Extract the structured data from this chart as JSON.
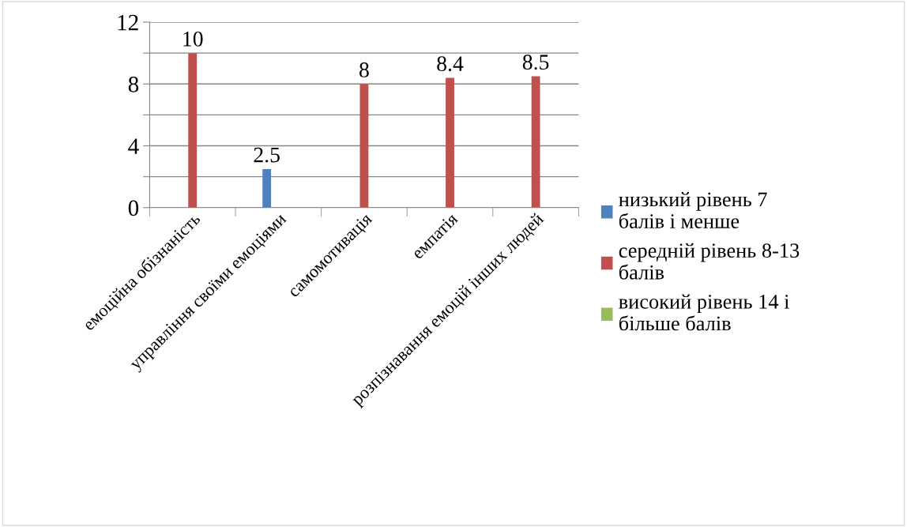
{
  "chart_data": {
    "type": "bar",
    "categories": [
      "емоційна обізнаність",
      "управління своїми емоціями",
      "самомотивація",
      "емпатія",
      "розпізнавання емоцій інших людей"
    ],
    "series": [
      {
        "name": "низький рівень 7\nбалів і менше",
        "color": "#4f81bd",
        "values": [
          null,
          2.5,
          null,
          null,
          null
        ]
      },
      {
        "name": "середній рівень 8-13\nбалів",
        "color": "#c0504d",
        "values": [
          10,
          null,
          8,
          8.4,
          8.5
        ]
      },
      {
        "name": "високий рівень 14 і\nбільше балів",
        "color": "#9bbb59",
        "values": [
          null,
          null,
          null,
          null,
          null
        ]
      }
    ],
    "ylim": [
      0,
      12
    ],
    "yticks": [
      0,
      {
        "value": 2,
        "label": null
      },
      4,
      {
        "value": 6,
        "label": null
      },
      8,
      {
        "value": 10,
        "label": null
      },
      12
    ],
    "grid": "y",
    "legend": "right",
    "data_labels": true
  }
}
